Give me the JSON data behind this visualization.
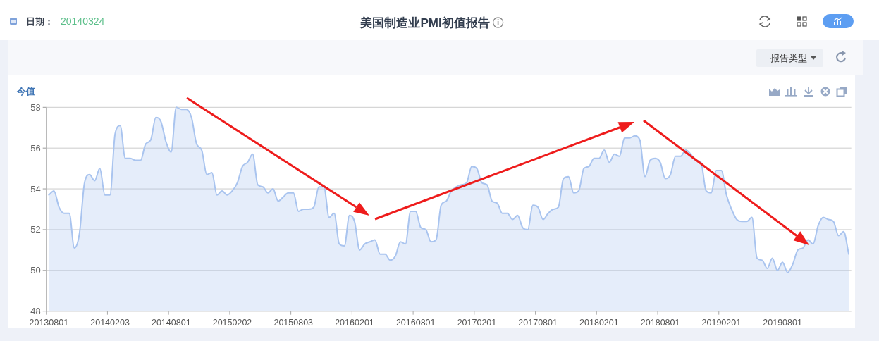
{
  "chart_data": {
    "type": "area",
    "title": "美国制造业PMI初值报告",
    "ylabel": "今值",
    "annotations": [
      "日期：",
      "20140324",
      "报告类型"
    ],
    "categories": [
      "20130801",
      null,
      null,
      null,
      null,
      null,
      null,
      null,
      null,
      null,
      null,
      null,
      "20140203",
      null,
      null,
      null,
      null,
      null,
      null,
      null,
      null,
      null,
      null,
      null,
      "20140801",
      null,
      null,
      null,
      null,
      null,
      null,
      null,
      null,
      null,
      null,
      null,
      "20150202",
      null,
      null,
      null,
      null,
      null,
      null,
      null,
      null,
      null,
      null,
      null,
      "20150803",
      null,
      null,
      null,
      null,
      null,
      null,
      null,
      null,
      null,
      null,
      null,
      "20160201",
      null,
      null,
      null,
      null,
      null,
      null,
      null,
      null,
      null,
      null,
      null,
      "20160801",
      null,
      null,
      null,
      null,
      null,
      null,
      null,
      null,
      null,
      null,
      null,
      "20170201",
      null,
      null,
      null,
      null,
      null,
      null,
      null,
      null,
      null,
      null,
      null,
      "20170801",
      null,
      null,
      null,
      null,
      null,
      null,
      null,
      null,
      null,
      null,
      null,
      "20180201",
      null,
      null,
      null,
      null,
      null,
      null,
      null,
      null,
      null,
      null,
      null,
      "20180801",
      null,
      null,
      null,
      null,
      null,
      null,
      null,
      null,
      null,
      null,
      null,
      "20190201",
      null,
      null,
      null,
      null,
      null,
      null,
      null,
      null,
      null,
      null,
      null,
      "20190801",
      null,
      null,
      null,
      null,
      null,
      null,
      null,
      null,
      null,
      null,
      null,
      null,
      null
    ],
    "series": [
      {
        "color": "#a9c4ef",
        "values": [
          53.7,
          53.9,
          53.1,
          52.8,
          52.8,
          51.1,
          51.8,
          54.3,
          54.7,
          54.4,
          55.0,
          53.7,
          53.7,
          56.7,
          57.1,
          55.5,
          55.5,
          55.4,
          55.4,
          56.2,
          56.4,
          57.5,
          57.3,
          56.3,
          55.8,
          58.0,
          57.9,
          57.9,
          57.5,
          56.2,
          55.9,
          54.7,
          54.8,
          53.7,
          53.9,
          53.7,
          53.9,
          54.3,
          55.1,
          55.3,
          55.7,
          54.2,
          54.1,
          53.8,
          54.0,
          53.4,
          53.6,
          53.8,
          53.8,
          52.9,
          53.0,
          53.0,
          53.1,
          54.1,
          54.1,
          52.6,
          52.8,
          51.3,
          51.2,
          52.7,
          52.4,
          51.0,
          51.3,
          51.4,
          51.5,
          50.8,
          50.8,
          50.5,
          50.7,
          51.4,
          51.3,
          52.9,
          52.9,
          52.1,
          52.0,
          51.4,
          51.5,
          53.2,
          53.4,
          53.9,
          54.1,
          54.2,
          54.3,
          55.1,
          55.0,
          54.3,
          54.2,
          53.4,
          53.3,
          52.8,
          52.8,
          52.5,
          52.7,
          52.1,
          52.0,
          53.2,
          53.1,
          52.5,
          52.8,
          53.0,
          53.1,
          54.5,
          54.6,
          53.8,
          53.9,
          55.0,
          55.1,
          55.5,
          55.5,
          55.9,
          55.3,
          55.7,
          55.6,
          56.5,
          56.5,
          56.6,
          56.4,
          54.6,
          55.4,
          55.5,
          55.3,
          54.5,
          54.7,
          55.6,
          55.6,
          55.9,
          55.7,
          55.4,
          55.3,
          53.9,
          53.8,
          54.9,
          54.9,
          53.7,
          53.0,
          52.5,
          52.4,
          52.4,
          52.6,
          50.6,
          50.5,
          50.1,
          50.6,
          50.0,
          50.4,
          49.9,
          50.3,
          51.0,
          51.1,
          51.5,
          51.3,
          52.2,
          52.6,
          52.5,
          52.4,
          51.7,
          51.9,
          50.8
        ]
      }
    ],
    "ylim": [
      48,
      58
    ],
    "yticks": [
      48,
      50,
      52,
      54,
      56,
      58
    ],
    "grid": "y"
  }
}
